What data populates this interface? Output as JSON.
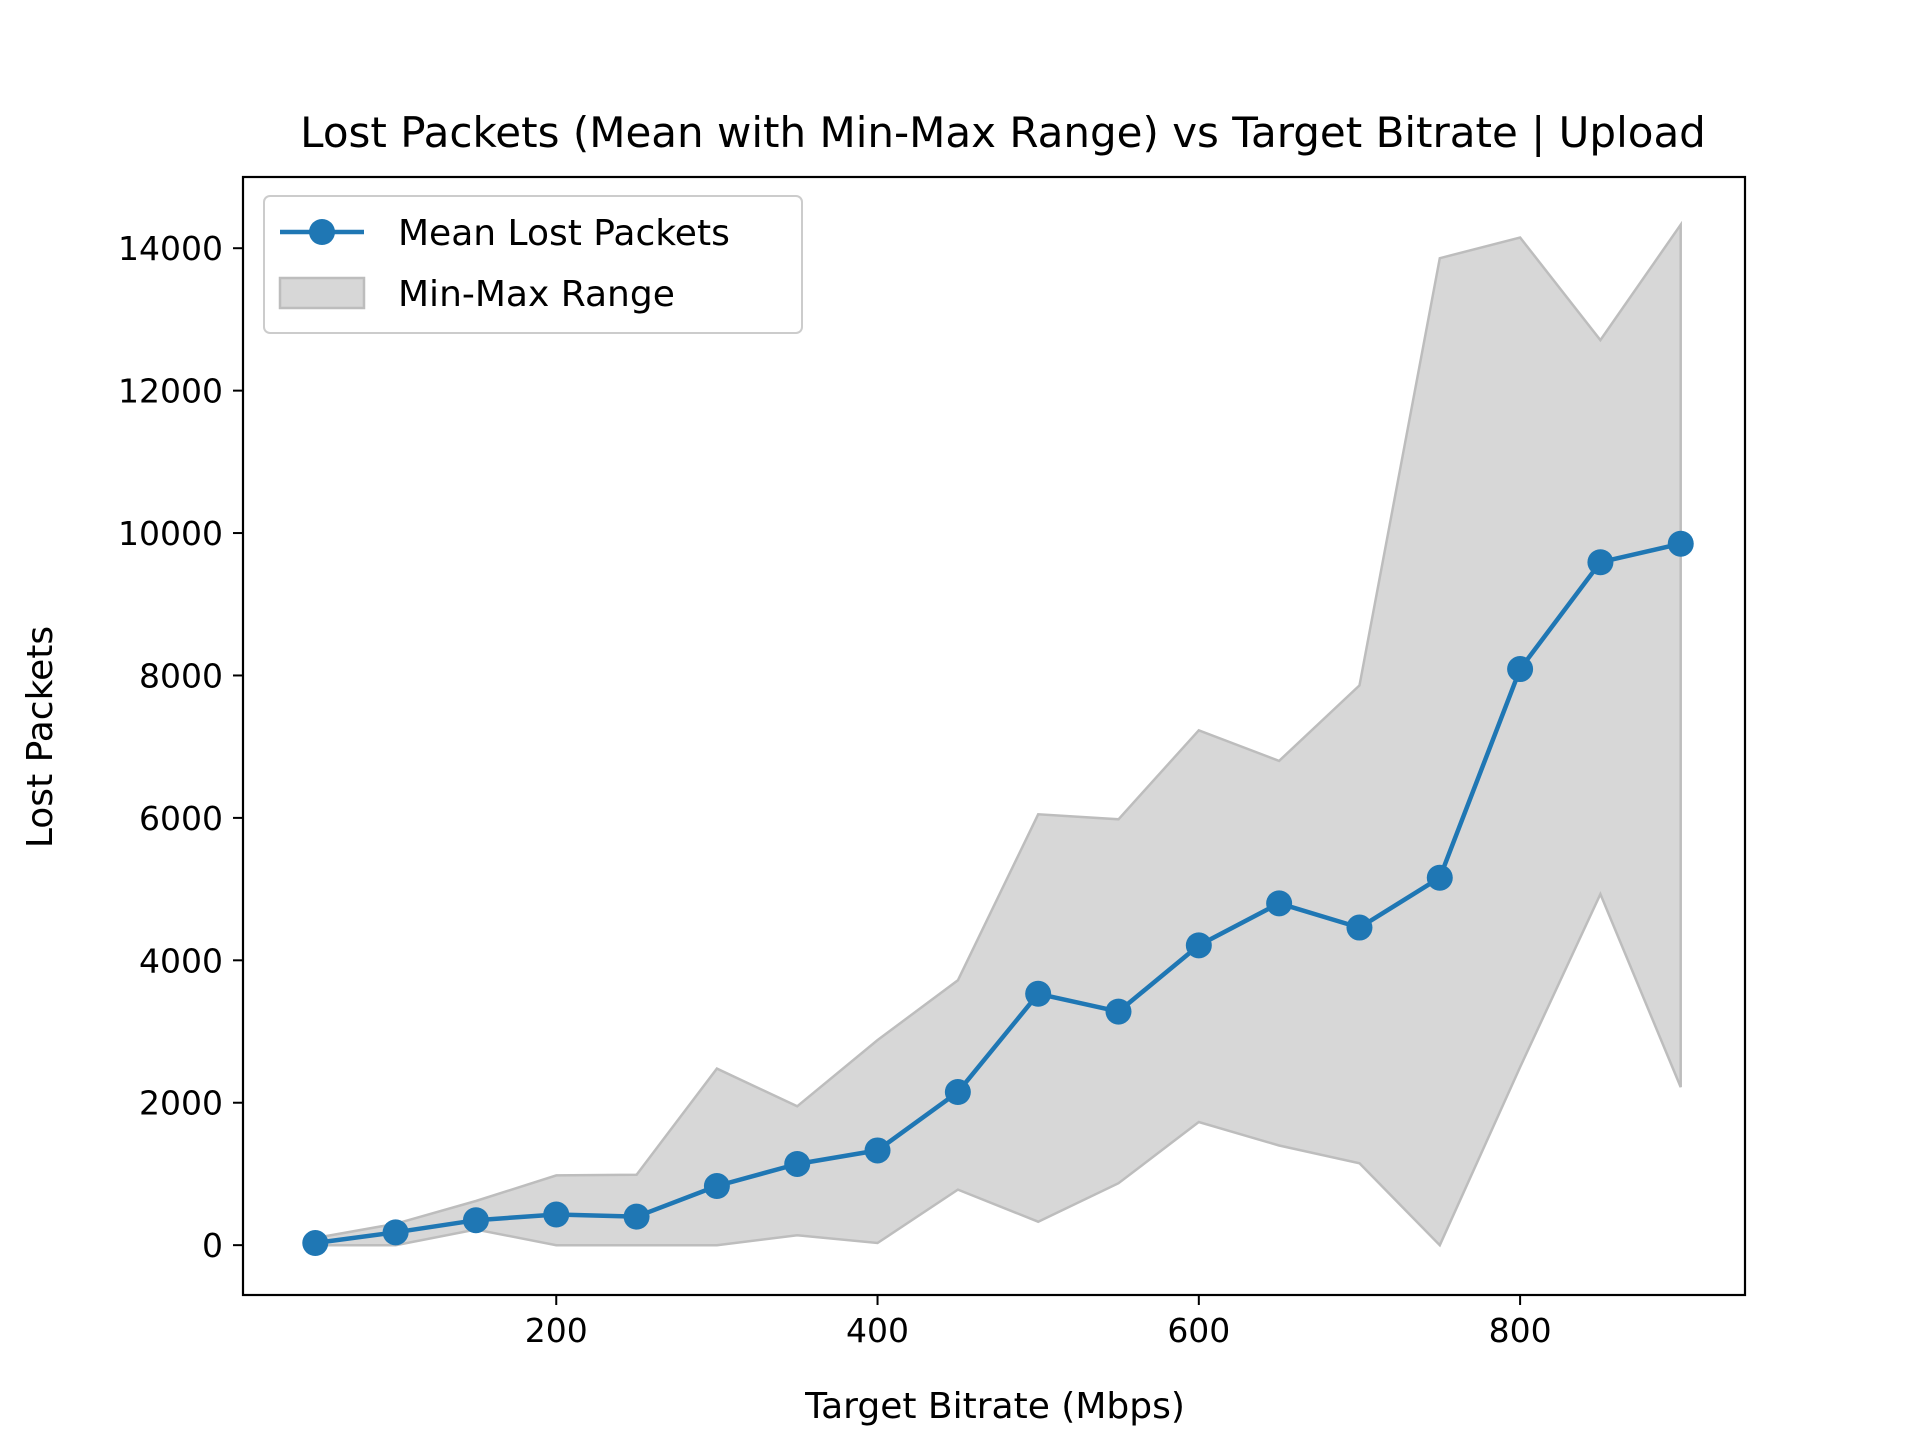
{
  "colors": {
    "line": "#1f77b4",
    "band_fill": "#d7d7d7",
    "band_edge": "#bdbdbd",
    "axes": "#000000",
    "background": "#ffffff"
  },
  "chart_data": {
    "type": "line",
    "title": "Lost Packets (Mean with Min-Max Range) vs Target Bitrate | Upload",
    "xlabel": "Target Bitrate (Mbps)",
    "ylabel": "Lost Packets",
    "xlim": [
      5,
      940
    ],
    "ylim": [
      -700,
      15000
    ],
    "xticks": [
      200,
      400,
      600,
      800
    ],
    "yticks": [
      0,
      2000,
      4000,
      6000,
      8000,
      10000,
      12000,
      14000
    ],
    "grid": false,
    "legend_position": "upper-left",
    "x": [
      50,
      100,
      150,
      200,
      250,
      300,
      350,
      400,
      450,
      500,
      550,
      600,
      650,
      700,
      750,
      800,
      850,
      900
    ],
    "series": [
      {
        "name": "Mean Lost Packets",
        "kind": "line-markers",
        "values": [
          30,
          180,
          350,
          430,
          400,
          830,
          1140,
          1330,
          2150,
          3530,
          3280,
          4210,
          4800,
          4460,
          5160,
          8090,
          9590,
          9850
        ]
      },
      {
        "name": "Min-Max Range",
        "kind": "band",
        "min": [
          0,
          0,
          220,
          0,
          0,
          0,
          140,
          30,
          780,
          330,
          870,
          1730,
          1400,
          1150,
          0,
          2500,
          4930,
          2220
        ],
        "max": [
          100,
          300,
          620,
          980,
          990,
          2480,
          1950,
          2880,
          3720,
          6050,
          5980,
          7230,
          6800,
          7860,
          13860,
          14150,
          12710,
          14330
        ]
      }
    ]
  }
}
